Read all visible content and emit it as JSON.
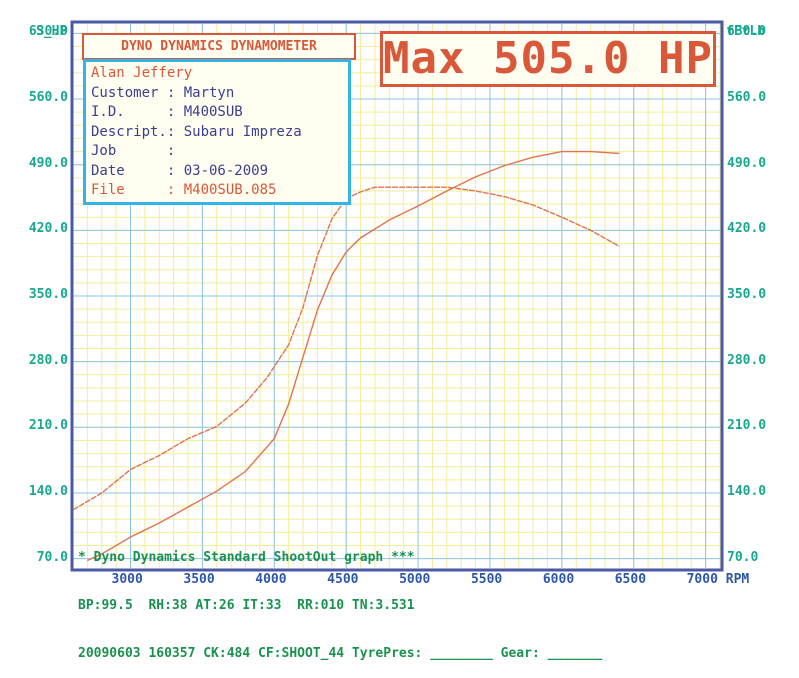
{
  "header": {
    "left_axis_title": "S_HP",
    "right_axis_title": "fFtLb",
    "dyno_title": "DYNO DYNAMICS DYNAMOMETER",
    "max_label": "Max 505.0 HP"
  },
  "info": [
    {
      "text": "Alan Jeffery",
      "color": "red"
    },
    {
      "text": "Customer : Martyn",
      "color": "blue"
    },
    {
      "text": "I.D.     : M400SUB",
      "color": "blue"
    },
    {
      "text": "Descript.: Subaru Impreza",
      "color": "blue"
    },
    {
      "text": "Job      :",
      "color": "blue"
    },
    {
      "text": "Date     : 03-06-2009",
      "color": "blue"
    },
    {
      "text": "File     : M400SUB.085",
      "color": "red"
    }
  ],
  "footer": {
    "line1": "* Dyno Dynamics Standard ShootOut graph ***",
    "line2": "BP:99.5  RH:38 AT:26 IT:33  RR:010 TN:3.531",
    "line3": "20090603 160357 CK:484 CF:SHOOT_44 TyrePres: ________ Gear: _______"
  },
  "colors": {
    "grid_minor": "#f2ee9a",
    "grid_major": "#8fc3e8",
    "frame": "#4a58a6",
    "curve": "#e0744a",
    "axis_text": "#17a88f"
  },
  "chart_data": {
    "type": "line",
    "title": "DYNO DYNAMICS DYNAMOMETER",
    "xlabel": "RPM",
    "ylabel_left": "S_HP",
    "ylabel_right": "fFtLb",
    "xlim": [
      2600,
      7100
    ],
    "ylim": [
      60,
      640
    ],
    "x_ticks": [
      3000,
      3500,
      4000,
      4500,
      5000,
      5500,
      6000,
      6500,
      7000
    ],
    "x_tick_labels": [
      "3000",
      "3500",
      "4000",
      "4500",
      "5000",
      "5500",
      "6000",
      "6500",
      "7000 RPM"
    ],
    "y_ticks": [
      70,
      140,
      210,
      280,
      350,
      420,
      490,
      560,
      630
    ],
    "y_tick_labels": [
      "70.0",
      "140.0",
      "210.0",
      "280.0",
      "350.0",
      "420.0",
      "490.0",
      "560.0",
      "630.0"
    ],
    "grid": true,
    "series": [
      {
        "x": [
          2700,
          2800,
          3000,
          3200,
          3400,
          3600,
          3800,
          4000,
          4100,
          4200,
          4300,
          4400,
          4500,
          4600,
          4800,
          5000,
          5200,
          5400,
          5600,
          5800,
          6000,
          6200,
          6400
        ],
        "y": [
          68,
          75,
          93,
          108,
          125,
          142,
          163,
          198,
          235,
          285,
          335,
          372,
          397,
          412,
          431,
          446,
          462,
          477,
          489,
          498,
          504,
          504,
          502
        ]
      },
      {
        "x": [
          2600,
          2800,
          3000,
          3200,
          3400,
          3600,
          3800,
          3950,
          4100,
          4200,
          4300,
          4400,
          4500,
          4600,
          4700,
          4800,
          5000,
          5200,
          5400,
          5600,
          5800,
          6000,
          6200,
          6400
        ],
        "y": [
          122,
          140,
          165,
          180,
          198,
          211,
          236,
          263,
          298,
          338,
          393,
          432,
          454,
          461,
          466,
          466,
          466,
          466,
          462,
          456,
          447,
          434,
          420,
          403
        ]
      }
    ]
  }
}
